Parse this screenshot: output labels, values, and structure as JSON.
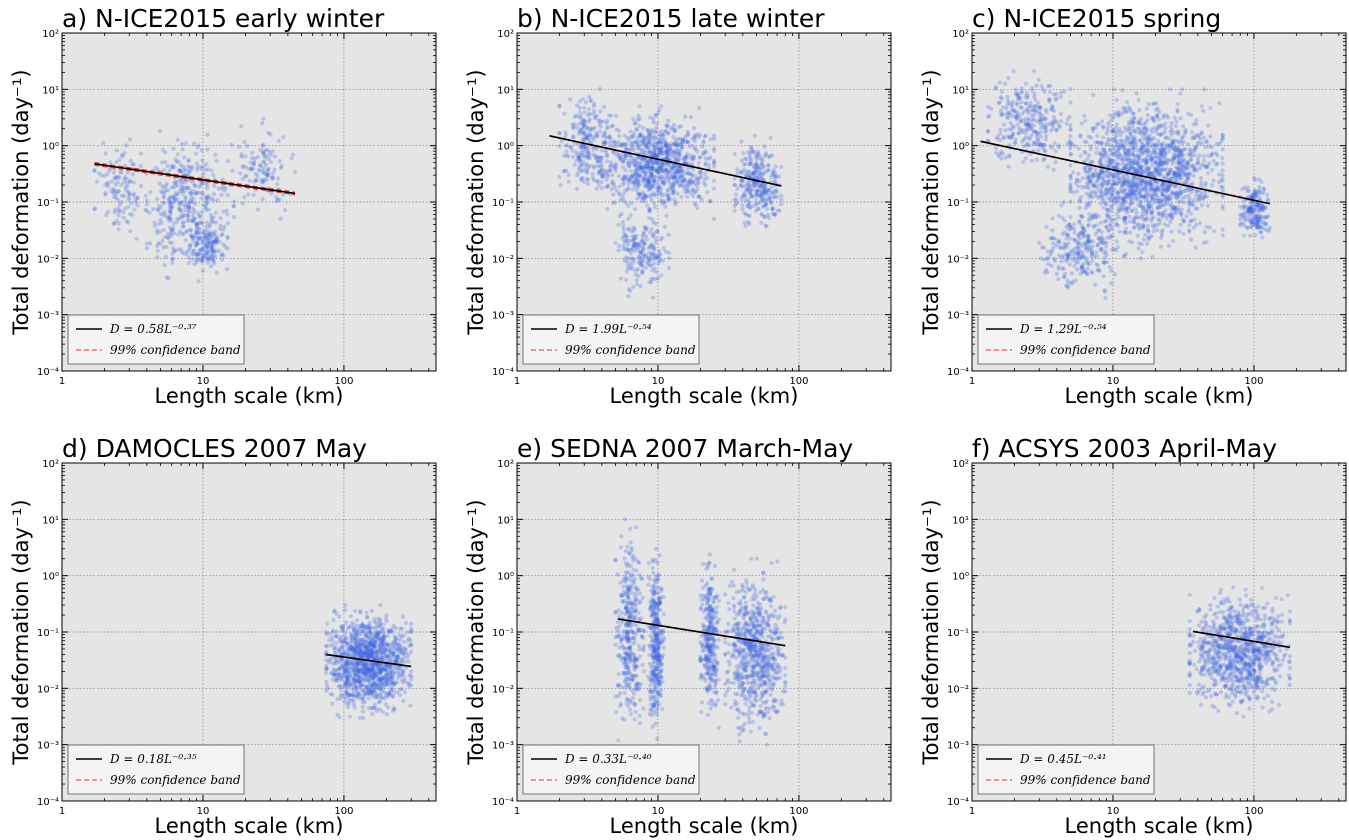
{
  "chart_data": [
    {
      "panel": "a",
      "type": "scatter",
      "title": "a) N-ICE2015 early winter",
      "xlabel": "Length scale (km)",
      "ylabel": "Total deformation (day⁻¹)",
      "xscale": "log",
      "yscale": "log",
      "xlim": [
        1,
        450
      ],
      "ylim": [
        0.0001,
        100
      ],
      "xticks": [
        "1",
        "10",
        "100"
      ],
      "yticks": [
        "10⁻⁴",
        "10⁻³",
        "10⁻²",
        "10⁻¹",
        "10⁰",
        "10¹",
        "10²"
      ],
      "grid": true,
      "legend_position": "lower-left",
      "fit": {
        "label": "D = 0.58L⁻⁰·³⁷",
        "coef": 0.58,
        "exp": -0.37,
        "x_range": [
          1.7,
          45
        ]
      },
      "confidence_label": "99% confidence band",
      "scatter_clusters": [
        {
          "x": [
            1.7,
            4
          ],
          "y": [
            0.02,
            1.5
          ],
          "n": 120
        },
        {
          "x": [
            4,
            15
          ],
          "y": [
            0.003,
            2.0
          ],
          "n": 400
        },
        {
          "x": [
            8,
            15
          ],
          "y": [
            0.005,
            0.05
          ],
          "n": 120
        },
        {
          "x": [
            15,
            45
          ],
          "y": [
            0.05,
            3.0
          ],
          "n": 120
        }
      ]
    },
    {
      "panel": "b",
      "type": "scatter",
      "title": "b) N-ICE2015 late winter",
      "xlabel": "Length scale (km)",
      "ylabel": "Total deformation (day⁻¹)",
      "xscale": "log",
      "yscale": "log",
      "xlim": [
        1,
        450
      ],
      "ylim": [
        0.0001,
        100
      ],
      "xticks": [
        "1",
        "10",
        "100"
      ],
      "yticks": [
        "10⁻⁴",
        "10⁻³",
        "10⁻²",
        "10⁻¹",
        "10⁰",
        "10¹",
        "10²"
      ],
      "grid": true,
      "legend_position": "lower-left",
      "fit": {
        "label": "D = 1.99L⁻⁰·⁵⁴",
        "coef": 1.99,
        "exp": -0.54,
        "x_range": [
          1.7,
          75
        ]
      },
      "confidence_label": "99% confidence band",
      "scatter_clusters": [
        {
          "x": [
            2,
            5
          ],
          "y": [
            0.1,
            12
          ],
          "n": 250
        },
        {
          "x": [
            4,
            25
          ],
          "y": [
            0.05,
            5
          ],
          "n": 900
        },
        {
          "x": [
            5,
            12
          ],
          "y": [
            0.002,
            0.1
          ],
          "n": 200
        },
        {
          "x": [
            35,
            75
          ],
          "y": [
            0.03,
            1.5
          ],
          "n": 300
        }
      ]
    },
    {
      "panel": "c",
      "type": "scatter",
      "title": "c) N-ICE2015 spring",
      "xlabel": "Length scale (km)",
      "ylabel": "Total deformation (day⁻¹)",
      "xscale": "log",
      "yscale": "log",
      "xlim": [
        1,
        450
      ],
      "ylim": [
        0.0001,
        100
      ],
      "xticks": [
        "1",
        "10",
        "100"
      ],
      "yticks": [
        "10⁻⁴",
        "10⁻³",
        "10⁻²",
        "10⁻¹",
        "10⁰",
        "10¹",
        "10²"
      ],
      "grid": true,
      "legend_position": "lower-left",
      "fit": {
        "label": "D = 1.29L⁻⁰·⁵⁴",
        "coef": 1.29,
        "exp": -0.54,
        "x_range": [
          1.15,
          130
        ]
      },
      "confidence_label": "99% confidence band",
      "scatter_clusters": [
        {
          "x": [
            1.3,
            5
          ],
          "y": [
            0.3,
            25
          ],
          "n": 300
        },
        {
          "x": [
            5,
            60
          ],
          "y": [
            0.01,
            10
          ],
          "n": 1600
        },
        {
          "x": [
            3,
            12
          ],
          "y": [
            0.002,
            0.1
          ],
          "n": 250
        },
        {
          "x": [
            80,
            130
          ],
          "y": [
            0.02,
            0.3
          ],
          "n": 200
        }
      ]
    },
    {
      "panel": "d",
      "type": "scatter",
      "title": "d) DAMOCLES 2007 May",
      "xlabel": "Length scale (km)",
      "ylabel": "Total deformation (day⁻¹)",
      "xscale": "log",
      "yscale": "log",
      "xlim": [
        1,
        450
      ],
      "ylim": [
        0.0001,
        100
      ],
      "xticks": [
        "1",
        "10",
        "100"
      ],
      "yticks": [
        "10⁻⁴",
        "10⁻³",
        "10⁻²",
        "10⁻¹",
        "10⁰",
        "10¹",
        "10²"
      ],
      "grid": true,
      "legend_position": "lower-left",
      "fit": {
        "label": "D = 0.18L⁻⁰·³⁵",
        "coef": 0.18,
        "exp": -0.35,
        "x_range": [
          75,
          300
        ]
      },
      "confidence_label": "99% confidence band",
      "scatter_clusters": [
        {
          "x": [
            75,
            300
          ],
          "y": [
            0.003,
            0.3
          ],
          "n": 1200
        }
      ]
    },
    {
      "panel": "e",
      "type": "scatter",
      "title": "e) SEDNA 2007 March-May",
      "xlabel": "Length scale (km)",
      "ylabel": "Total deformation (day⁻¹)",
      "xscale": "log",
      "yscale": "log",
      "xlim": [
        1,
        450
      ],
      "ylim": [
        0.0001,
        100
      ],
      "xticks": [
        "1",
        "10",
        "100"
      ],
      "yticks": [
        "10⁻⁴",
        "10⁻³",
        "10⁻²",
        "10⁻¹",
        "10⁰",
        "10¹",
        "10²"
      ],
      "grid": true,
      "legend_position": "lower-left",
      "fit": {
        "label": "D = 0.33L⁻⁰·⁴⁰",
        "coef": 0.33,
        "exp": -0.4,
        "x_range": [
          5.2,
          80
        ]
      },
      "confidence_label": "99% confidence band",
      "scatter_clusters": [
        {
          "x": [
            5,
            8
          ],
          "y": [
            0.001,
            10
          ],
          "n": 350
        },
        {
          "x": [
            8.5,
            11
          ],
          "y": [
            0.001,
            5
          ],
          "n": 350
        },
        {
          "x": [
            20,
            27
          ],
          "y": [
            0.002,
            3
          ],
          "n": 300
        },
        {
          "x": [
            30,
            80
          ],
          "y": [
            0.001,
            2
          ],
          "n": 700
        }
      ]
    },
    {
      "panel": "f",
      "type": "scatter",
      "title": "f) ACSYS 2003 April-May",
      "xlabel": "Length scale (km)",
      "ylabel": "Total deformation (day⁻¹)",
      "xscale": "log",
      "yscale": "log",
      "xlim": [
        1,
        450
      ],
      "ylim": [
        0.0001,
        100
      ],
      "xticks": [
        "1",
        "10",
        "100"
      ],
      "yticks": [
        "10⁻⁴",
        "10⁻³",
        "10⁻²",
        "10⁻¹",
        "10⁰",
        "10¹",
        "10²"
      ],
      "grid": true,
      "legend_position": "lower-left",
      "fit": {
        "label": "D = 0.45L⁻⁰·⁴¹",
        "coef": 0.45,
        "exp": -0.41,
        "x_range": [
          37,
          180
        ]
      },
      "confidence_label": "99% confidence band",
      "scatter_clusters": [
        {
          "x": [
            35,
            180
          ],
          "y": [
            0.003,
            0.7
          ],
          "n": 900
        }
      ]
    }
  ],
  "colors": {
    "scatter": "#4169e1",
    "fit_line": "#000000",
    "confidence": "#e8312a",
    "plot_bg": "#e5e5e5",
    "grid": "#7f7f7f"
  }
}
